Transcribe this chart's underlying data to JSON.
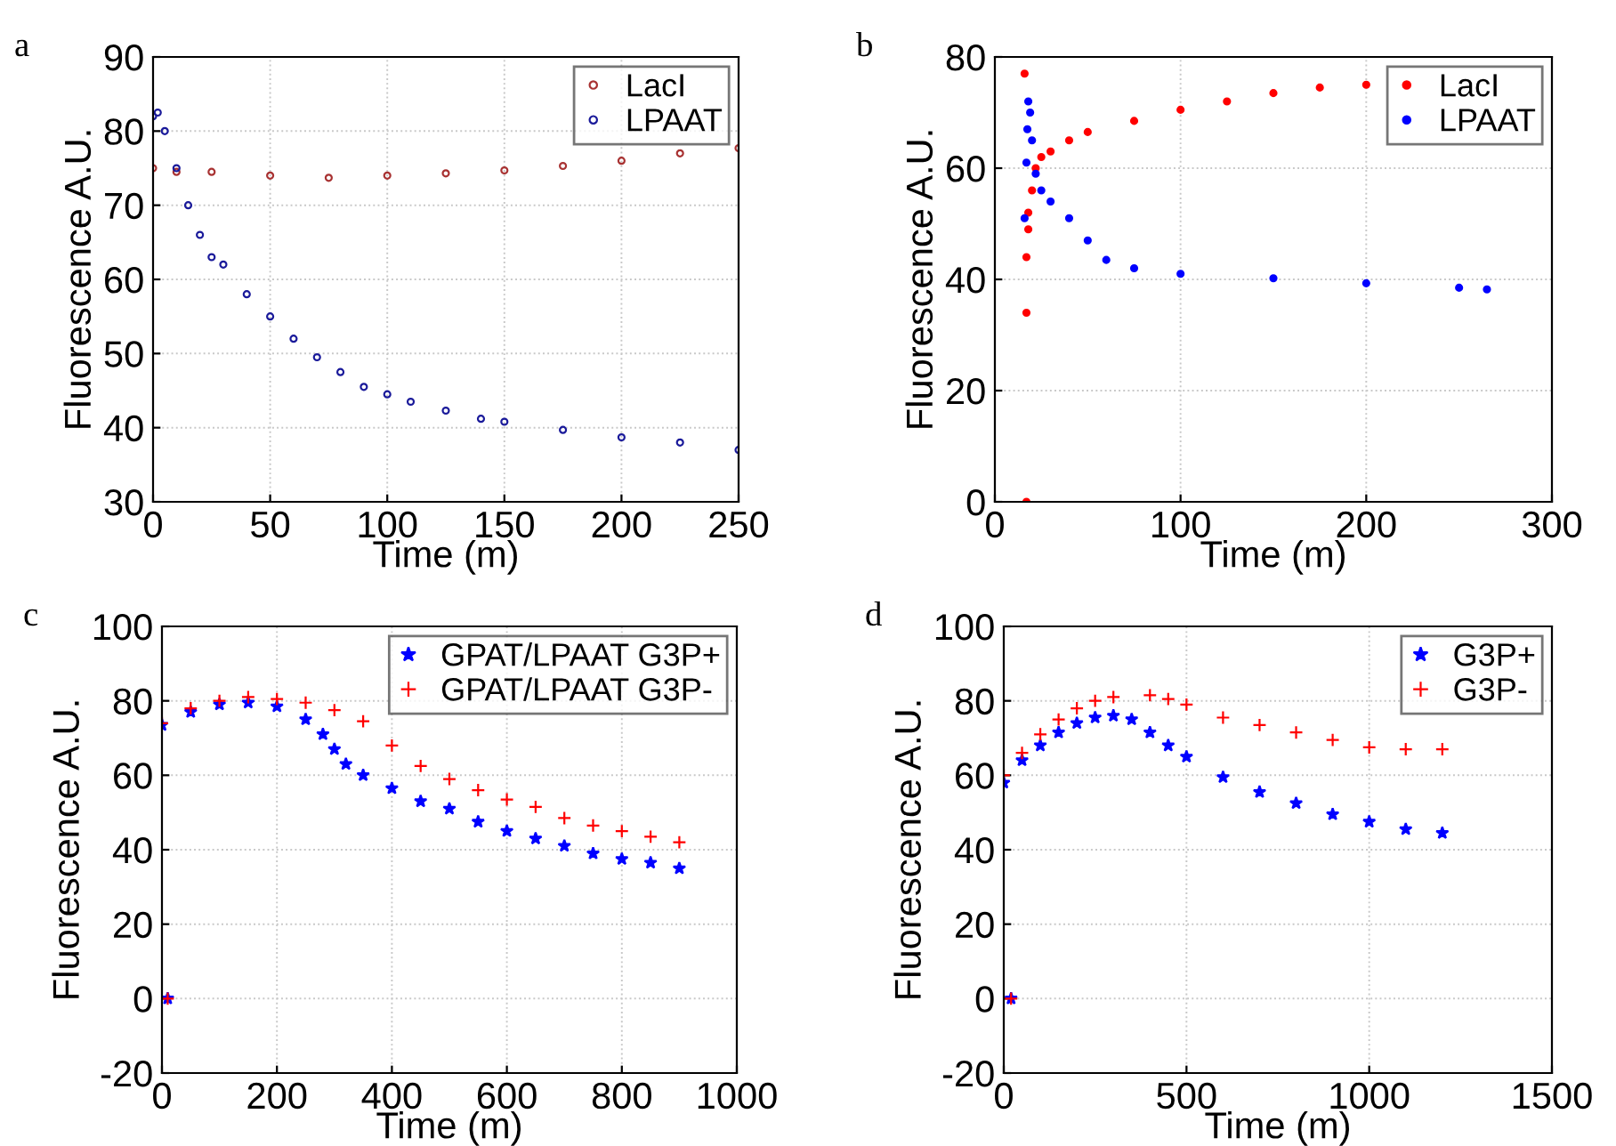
{
  "chart_data": [
    {
      "type": "scatter",
      "title": "a",
      "xlabel": "Time (m)",
      "ylabel": "Fluorescence A.U.",
      "xlim": [
        0,
        250
      ],
      "ylim": [
        30,
        90
      ],
      "xticks": [
        0,
        50,
        100,
        150,
        200,
        250
      ],
      "yticks": [
        30,
        40,
        50,
        60,
        70,
        80,
        90
      ],
      "grid": true,
      "legend": "top right",
      "series": [
        {
          "name": "LacI",
          "color": "#a83232",
          "marker": "circle",
          "x": [
            0,
            10,
            25,
            50,
            75,
            100,
            125,
            150,
            175,
            200,
            225,
            250
          ],
          "values": [
            75,
            74.5,
            74.5,
            74,
            73.7,
            74,
            74.3,
            74.7,
            75.3,
            76,
            77,
            77.7
          ]
        },
        {
          "name": "LPAAT",
          "color": "#1a1a9a",
          "marker": "circle",
          "x": [
            0,
            2,
            5,
            10,
            15,
            20,
            25,
            30,
            40,
            50,
            60,
            70,
            80,
            90,
            100,
            110,
            125,
            140,
            150,
            175,
            200,
            225,
            250
          ],
          "values": [
            82,
            82.5,
            80,
            75,
            70,
            66,
            63,
            62,
            58,
            55,
            52,
            49.5,
            47.5,
            45.5,
            44.5,
            43.5,
            42.3,
            41.2,
            40.8,
            39.7,
            38.7,
            38,
            37
          ]
        }
      ]
    },
    {
      "type": "scatter",
      "title": "b",
      "xlabel": "Time (m)",
      "ylabel": "Fluorescence A.U.",
      "xlim": [
        0,
        300
      ],
      "ylim": [
        0,
        80
      ],
      "xticks": [
        0,
        100,
        200,
        300
      ],
      "yticks": [
        0,
        20,
        40,
        60,
        80
      ],
      "grid": true,
      "legend": "top right",
      "series": [
        {
          "name": "LacI",
          "color": "#ff0000",
          "marker": "circle",
          "x": [
            16,
            17,
            17,
            17,
            18,
            18,
            20,
            22,
            25,
            30,
            40,
            50,
            75,
            100,
            125,
            150,
            175,
            200
          ],
          "values": [
            77,
            0,
            34,
            44,
            49,
            52,
            56,
            60,
            62,
            63,
            65,
            66.5,
            68.5,
            70.5,
            72,
            73.5,
            74.5,
            75
          ]
        },
        {
          "name": "LPAAT",
          "color": "#0000ff",
          "marker": "circle",
          "x": [
            16,
            17,
            17.5,
            18,
            19,
            20,
            22,
            25,
            30,
            40,
            50,
            60,
            75,
            100,
            150,
            200,
            250,
            265
          ],
          "values": [
            51,
            61,
            67,
            72,
            70,
            65,
            59,
            56,
            54,
            51,
            47,
            43.5,
            42,
            41,
            40.2,
            39.3,
            38.5,
            38.2
          ]
        }
      ]
    },
    {
      "type": "scatter",
      "title": "c",
      "xlabel": "Time (m)",
      "ylabel": "Fluorescence A.U.",
      "xlim": [
        0,
        1000
      ],
      "ylim": [
        -20,
        100
      ],
      "xticks": [
        0,
        200,
        400,
        600,
        800,
        1000
      ],
      "yticks": [
        {
          "value": -20,
          "label": "-20"
        },
        0,
        20,
        40,
        60,
        80,
        100
      ],
      "grid": true,
      "legend": "top right",
      "series": [
        {
          "name": "GPAT/LPAAT G3P+",
          "color": "#0000ff",
          "marker": "star",
          "x": [
            10,
            0,
            50,
            100,
            150,
            200,
            250,
            280,
            300,
            320,
            350,
            400,
            450,
            500,
            550,
            600,
            650,
            700,
            750,
            800,
            850,
            900
          ],
          "values": [
            0,
            73.5,
            77,
            79,
            79.5,
            78.5,
            75,
            71,
            67,
            63,
            60,
            56.5,
            53,
            51,
            47.5,
            45,
            43,
            41,
            39,
            37.5,
            36.5,
            35
          ]
        },
        {
          "name": "GPAT/LPAAT G3P-",
          "color": "#ff0000",
          "marker": "cross",
          "x": [
            10,
            0,
            50,
            100,
            150,
            200,
            250,
            300,
            350,
            400,
            450,
            500,
            550,
            600,
            650,
            700,
            750,
            800,
            850,
            900
          ],
          "values": [
            0,
            74,
            78,
            80,
            81,
            80.5,
            79.5,
            77.5,
            74.5,
            68,
            62.5,
            59,
            56,
            53.5,
            51.5,
            48.5,
            46.5,
            45,
            43.5,
            42
          ]
        }
      ]
    },
    {
      "type": "scatter",
      "title": "d",
      "xlabel": "Time (m)",
      "ylabel": "Fluorescence A.U.",
      "xlim": [
        0,
        1500
      ],
      "ylim": [
        -20,
        100
      ],
      "xticks": [
        0,
        500,
        1000,
        1500
      ],
      "yticks": [
        {
          "value": -20,
          "label": "-20"
        },
        0,
        20,
        40,
        60,
        80,
        100
      ],
      "grid": true,
      "legend": "top right",
      "series": [
        {
          "name": "G3P+",
          "color": "#0000ff",
          "marker": "star",
          "x": [
            20,
            0,
            50,
            100,
            150,
            200,
            250,
            300,
            350,
            400,
            450,
            500,
            600,
            700,
            800,
            900,
            1000,
            1100,
            1200
          ],
          "values": [
            0,
            58,
            64,
            68,
            71.5,
            74,
            75.5,
            76,
            75,
            71.5,
            68,
            65,
            59.5,
            55.5,
            52.5,
            49.5,
            47.5,
            45.5,
            44.5
          ]
        },
        {
          "name": "G3P-",
          "color": "#ff0000",
          "marker": "cross",
          "x": [
            20,
            0,
            50,
            100,
            150,
            200,
            250,
            300,
            400,
            450,
            500,
            600,
            700,
            800,
            900,
            1000,
            1100,
            1200
          ],
          "values": [
            0,
            60,
            66,
            71,
            75,
            78,
            80,
            81,
            81.5,
            80.5,
            79,
            75.5,
            73.5,
            71.5,
            69.5,
            67.5,
            67,
            67
          ]
        }
      ]
    }
  ]
}
